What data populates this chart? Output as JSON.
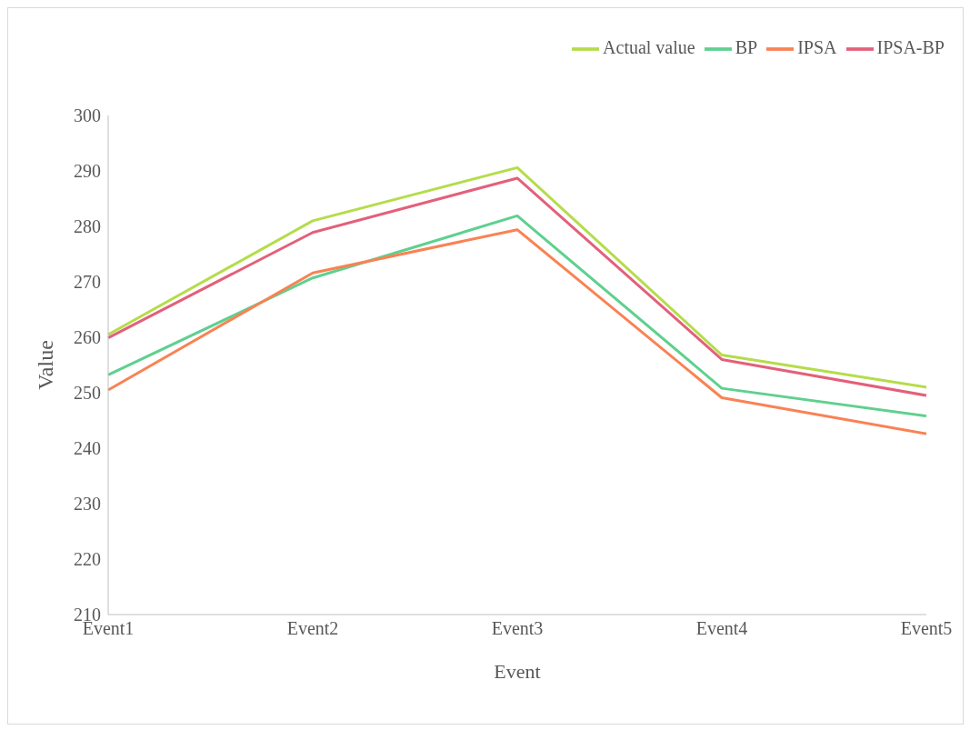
{
  "chart_data": {
    "type": "line",
    "xlabel": "Event",
    "ylabel": "Value",
    "categories": [
      "Event1",
      "Event2",
      "Event3",
      "Event4",
      "Event5"
    ],
    "series": [
      {
        "name": "BP",
        "color": "#5fd08f",
        "values": [
          253.2,
          270.7,
          281.9,
          250.8,
          245.8
        ]
      },
      {
        "name": "IPSA-BP",
        "color": "#e3607a",
        "values": [
          259.9,
          278.9,
          288.7,
          256.0,
          249.5
        ]
      },
      {
        "name": "IPSA",
        "color": "#f98254",
        "values": [
          250.5,
          271.6,
          279.4,
          249.1,
          242.6
        ]
      },
      {
        "name": "Actual value",
        "color": "#b5dc4a",
        "values": [
          260.5,
          281.0,
          290.6,
          256.8,
          251.0
        ]
      }
    ],
    "ylim": [
      210,
      300
    ],
    "yticks": [
      210,
      220,
      230,
      240,
      250,
      260,
      270,
      280,
      290,
      300
    ],
    "grid": false,
    "legend": "top right",
    "marker": "none",
    "line_style": "solid"
  }
}
